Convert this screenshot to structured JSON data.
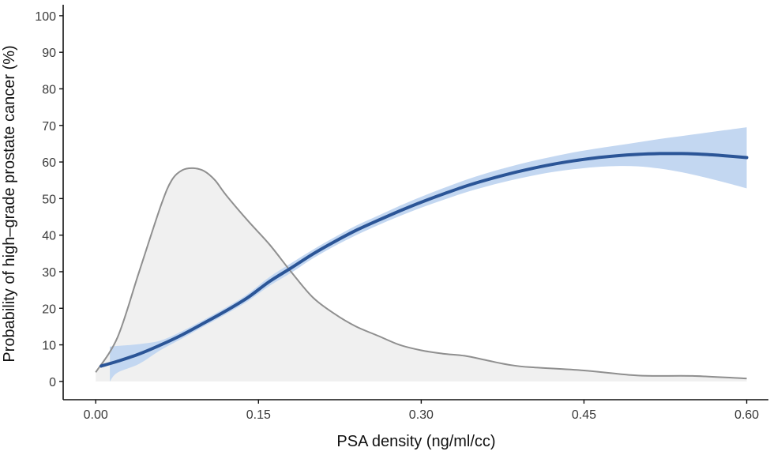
{
  "chart_data": {
    "type": "line",
    "title": "",
    "xlabel": "PSA density (ng/ml/cc)",
    "ylabel": "Probability of high–grade prostate cancer (%)",
    "xlim": [
      -0.03,
      0.62
    ],
    "ylim": [
      -5,
      103
    ],
    "x_ticks": [
      0.0,
      0.15,
      0.3,
      0.45,
      0.6
    ],
    "x_tick_labels": [
      "0.00",
      "0.15",
      "0.30",
      "0.45",
      "0.60"
    ],
    "y_ticks": [
      0,
      10,
      20,
      30,
      40,
      50,
      60,
      70,
      80,
      90,
      100
    ],
    "y_tick_labels": [
      "0",
      "10",
      "20",
      "30",
      "40",
      "50",
      "60",
      "70",
      "80",
      "90",
      "100"
    ],
    "grid": false,
    "colors": {
      "line": "#2b5597",
      "band": "#c3d7f1",
      "density_fill": "#f0f0f0",
      "density_line": "#8f8f8f",
      "axis": "#111111"
    },
    "series": [
      {
        "kind": "fitted_line",
        "x": [
          0.005,
          0.02,
          0.04,
          0.06,
          0.08,
          0.1,
          0.12,
          0.14,
          0.16,
          0.18,
          0.2,
          0.22,
          0.24,
          0.26,
          0.28,
          0.3,
          0.32,
          0.34,
          0.36,
          0.38,
          0.4,
          0.42,
          0.44,
          0.46,
          0.48,
          0.5,
          0.52,
          0.54,
          0.56,
          0.58,
          0.6
        ],
        "y": [
          4.2,
          5.5,
          7.5,
          10.0,
          12.8,
          16.0,
          19.3,
          22.9,
          27.3,
          31.0,
          34.8,
          38.2,
          41.3,
          44.0,
          46.6,
          49.0,
          51.2,
          53.3,
          55.1,
          56.7,
          58.1,
          59.3,
          60.3,
          61.1,
          61.7,
          62.1,
          62.3,
          62.3,
          62.1,
          61.7,
          61.2
        ]
      },
      {
        "kind": "confidence_band",
        "x": [
          0.013,
          0.02,
          0.04,
          0.06,
          0.08,
          0.1,
          0.12,
          0.14,
          0.16,
          0.18,
          0.2,
          0.22,
          0.24,
          0.26,
          0.28,
          0.3,
          0.32,
          0.34,
          0.36,
          0.38,
          0.4,
          0.42,
          0.44,
          0.46,
          0.48,
          0.5,
          0.52,
          0.54,
          0.56,
          0.58,
          0.6
        ],
        "upper": [
          9.5,
          9.7,
          10.2,
          11.2,
          13.8,
          16.9,
          20.2,
          23.9,
          28.5,
          32.3,
          36.0,
          39.4,
          42.6,
          45.3,
          48.0,
          50.5,
          52.8,
          55.0,
          56.9,
          58.6,
          60.1,
          61.4,
          62.6,
          63.6,
          64.5,
          65.4,
          66.3,
          67.1,
          67.9,
          68.7,
          69.5
        ],
        "lower": [
          0.0,
          2.4,
          4.8,
          8.6,
          11.8,
          15.1,
          18.4,
          21.9,
          26.1,
          29.7,
          33.6,
          37.0,
          40.0,
          42.7,
          45.2,
          47.5,
          49.6,
          51.6,
          53.3,
          54.8,
          56.1,
          57.2,
          58.0,
          58.6,
          58.9,
          58.8,
          58.2,
          57.2,
          55.9,
          54.4,
          52.8
        ]
      },
      {
        "kind": "density",
        "x": [
          0.0,
          0.02,
          0.04,
          0.06,
          0.07,
          0.08,
          0.09,
          0.1,
          0.11,
          0.12,
          0.14,
          0.16,
          0.18,
          0.2,
          0.22,
          0.24,
          0.26,
          0.28,
          0.3,
          0.32,
          0.34,
          0.36,
          0.38,
          0.4,
          0.45,
          0.5,
          0.55,
          0.6
        ],
        "y": [
          2.5,
          12.0,
          30.0,
          48.0,
          55.0,
          57.8,
          58.3,
          57.5,
          55.0,
          51.0,
          44.0,
          37.5,
          30.0,
          23.0,
          18.5,
          15.0,
          12.5,
          10.0,
          8.5,
          7.6,
          7.0,
          5.8,
          4.6,
          3.9,
          3.0,
          1.6,
          1.5,
          0.8
        ]
      }
    ]
  }
}
